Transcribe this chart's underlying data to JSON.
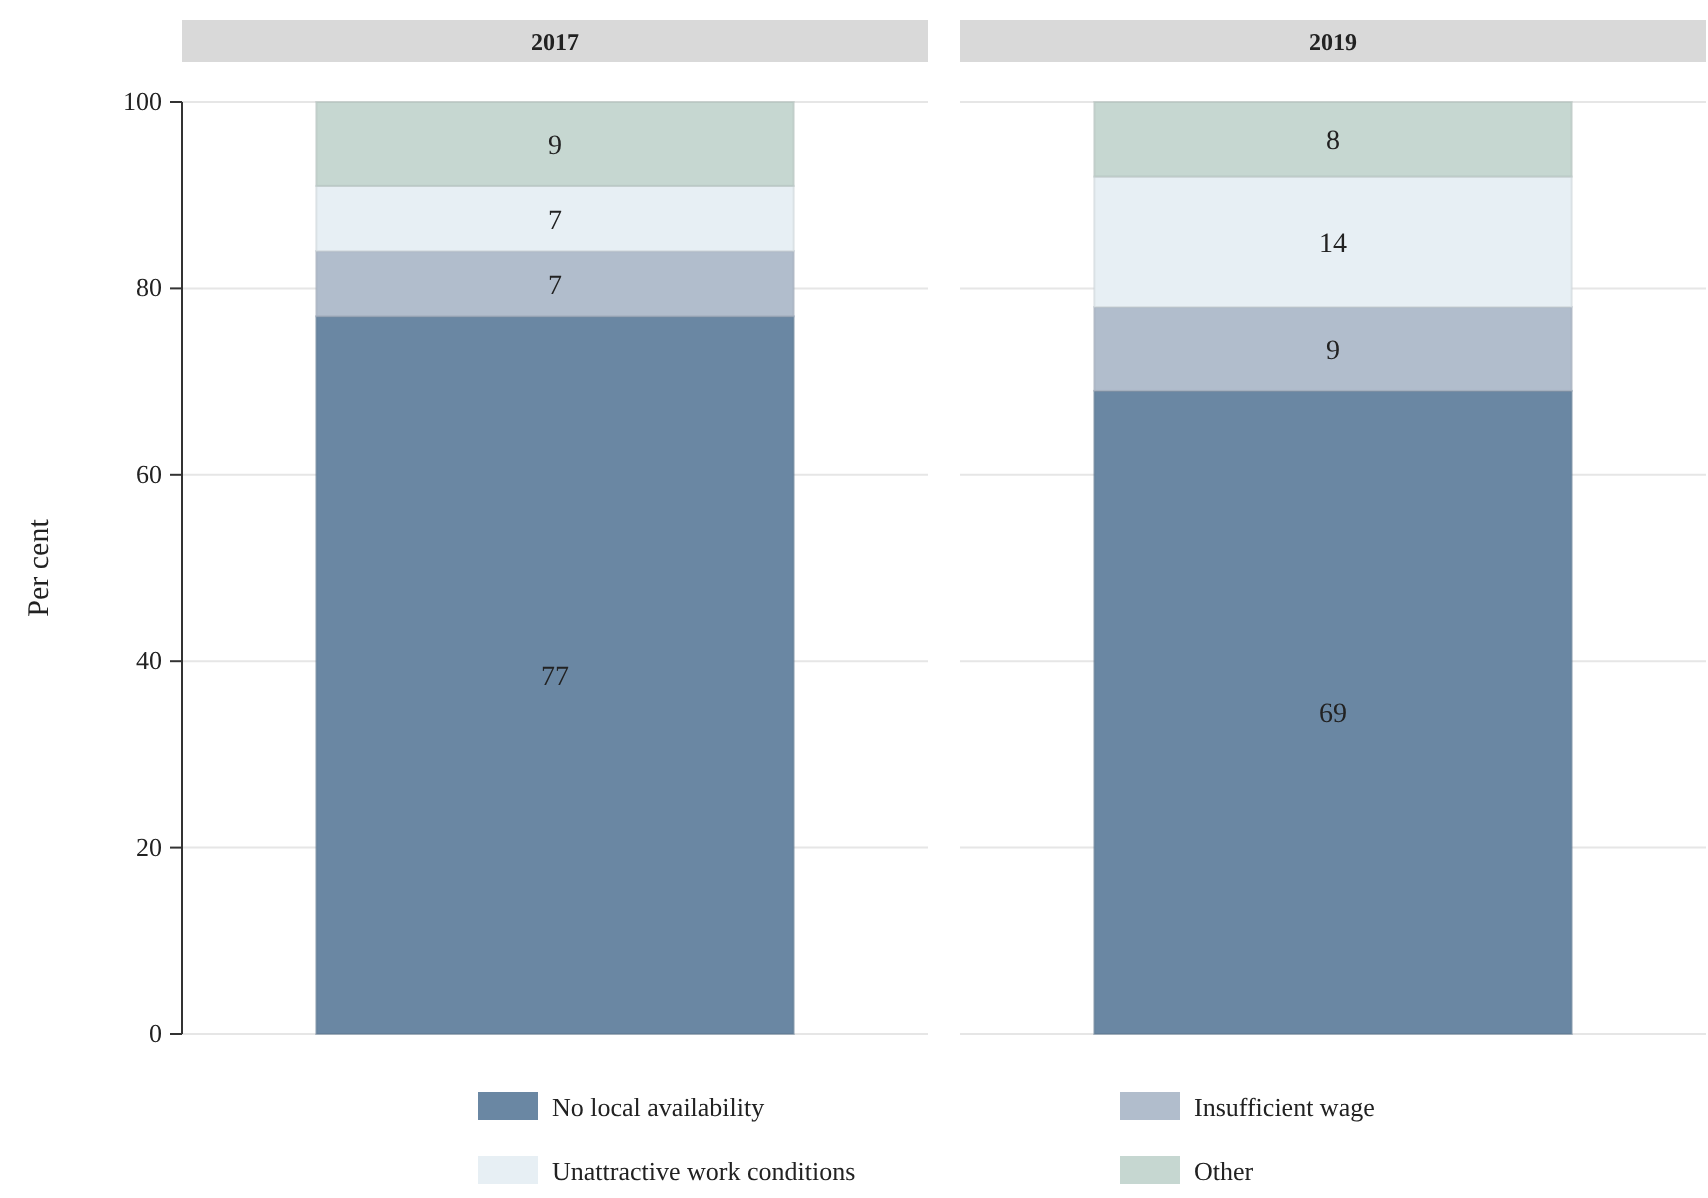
{
  "chart_data": {
    "type": "bar",
    "stacked": true,
    "ylabel": "Per cent",
    "categories": [
      "2017",
      "2019"
    ],
    "ylim": [
      0,
      100
    ],
    "yticks": [
      0,
      20,
      40,
      60,
      80,
      100
    ],
    "grid": "y",
    "legend": "bottom",
    "data_labels": true,
    "series": [
      {
        "name": "No local availability",
        "color": "#6a87a3",
        "values": [
          77,
          69
        ]
      },
      {
        "name": "Insufficient wage",
        "color": "#b1bdcc",
        "values": [
          7,
          9
        ]
      },
      {
        "name": "Unattractive work conditions",
        "color": "#e7eff4",
        "values": [
          7,
          14
        ]
      },
      {
        "name": "Other",
        "color": "#c6d7d1",
        "values": [
          9,
          8
        ]
      }
    ]
  }
}
